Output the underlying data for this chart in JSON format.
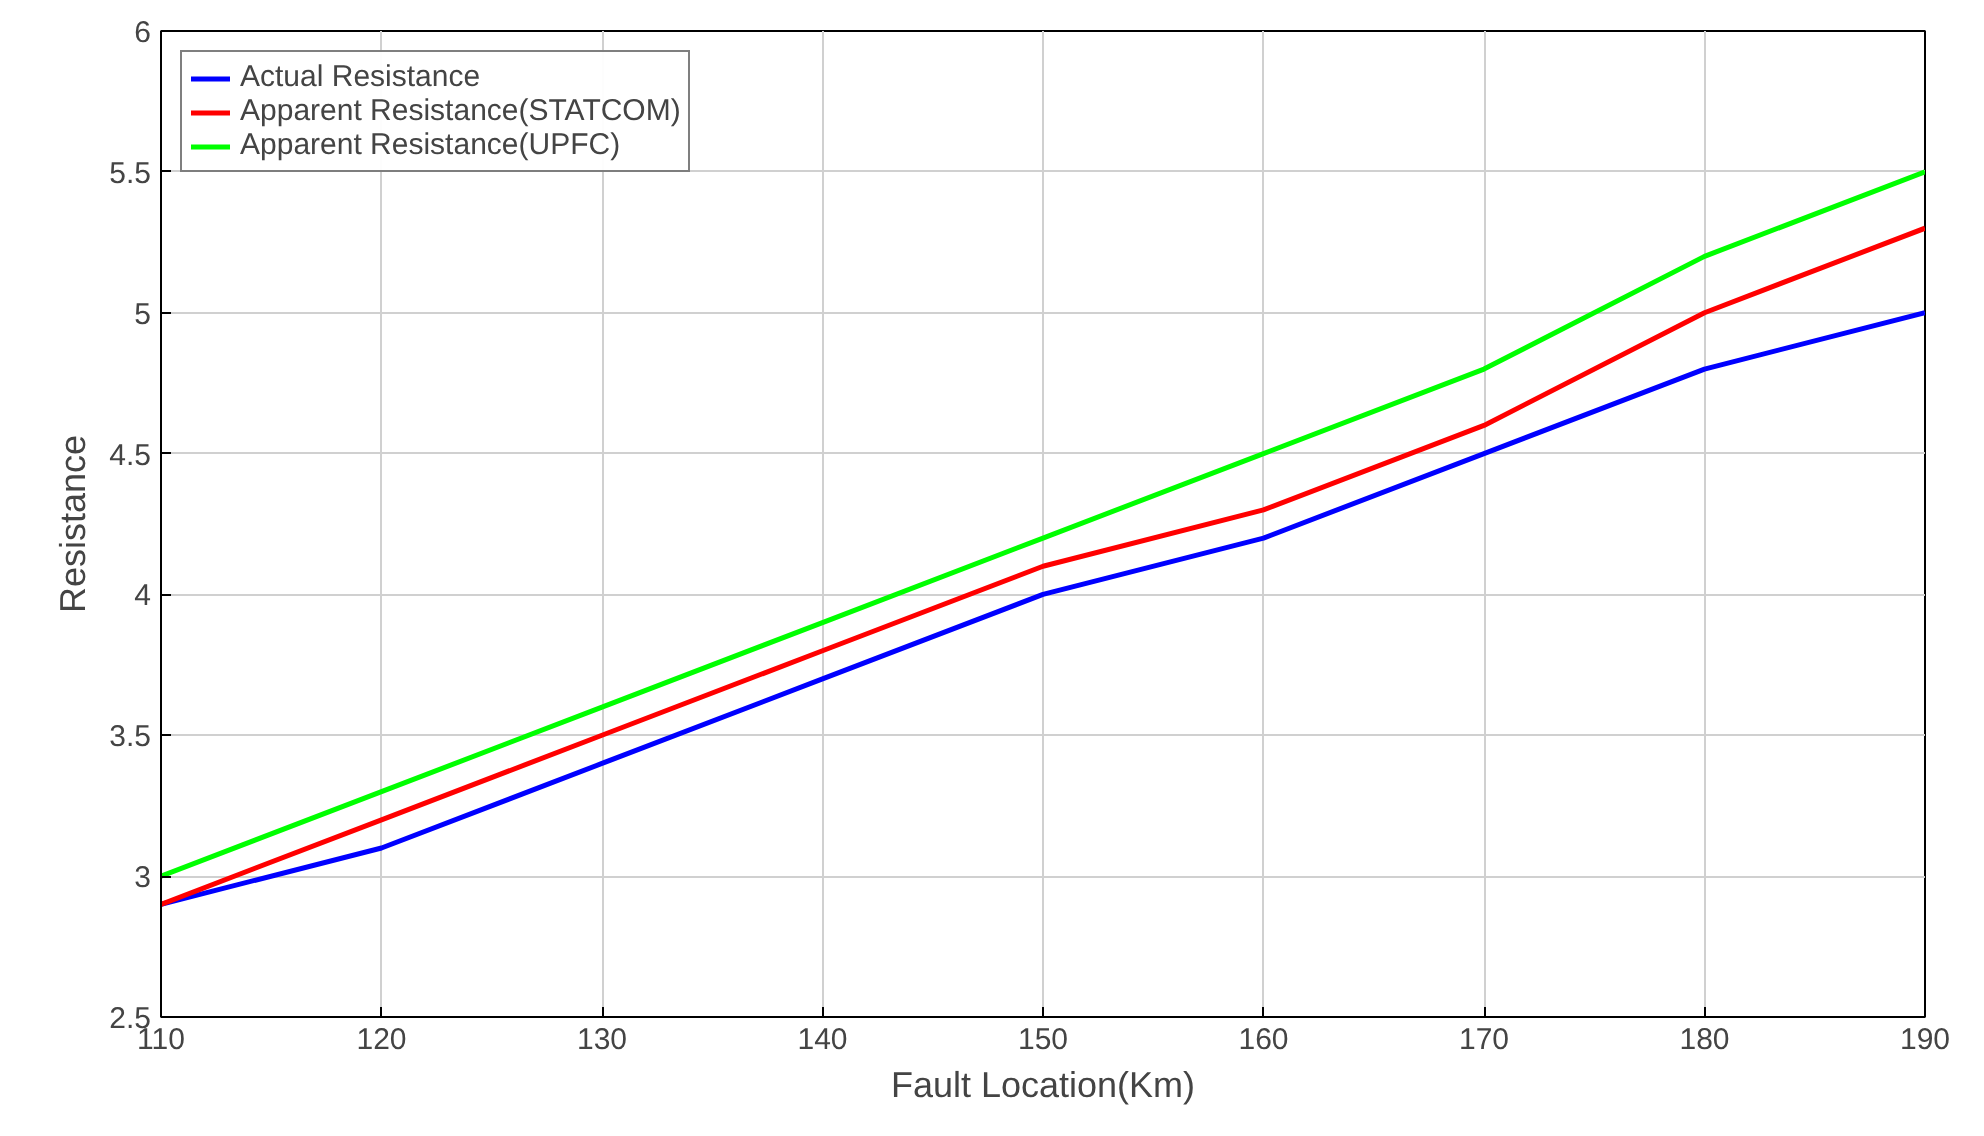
{
  "chart_data": {
    "type": "line",
    "xlabel": "Fault Location(Km)",
    "ylabel": "Resistance",
    "x": [
      110,
      120,
      130,
      140,
      150,
      160,
      170,
      180,
      190
    ],
    "series": [
      {
        "name": "Actual Resistance",
        "color": "#0000ff",
        "values": [
          2.9,
          3.1,
          3.4,
          3.7,
          4.0,
          4.2,
          4.5,
          4.8,
          5.0
        ]
      },
      {
        "name": "Apparent Resistance(STATCOM)",
        "color": "#ff0000",
        "values": [
          2.9,
          3.2,
          3.5,
          3.8,
          4.1,
          4.3,
          4.6,
          5.0,
          5.3
        ]
      },
      {
        "name": "Apparent Resistance(UPFC)",
        "color": "#00ff00",
        "values": [
          3.0,
          3.3,
          3.6,
          3.9,
          4.2,
          4.5,
          4.8,
          5.2,
          5.5
        ]
      }
    ],
    "xlim": [
      110,
      190
    ],
    "ylim": [
      2.5,
      6
    ],
    "xticks": [
      110,
      120,
      130,
      140,
      150,
      160,
      170,
      180,
      190
    ],
    "yticks": [
      2.5,
      3,
      3.5,
      4,
      4.5,
      5,
      5.5,
      6
    ],
    "grid": true,
    "legend": "top left"
  }
}
